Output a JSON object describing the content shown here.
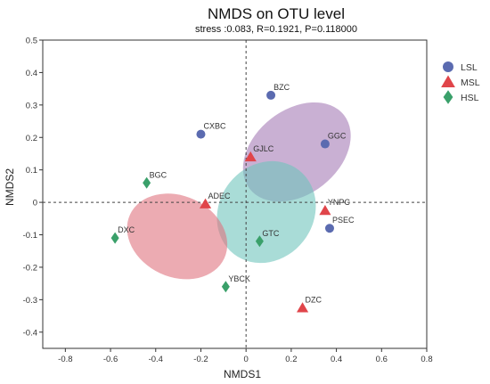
{
  "chart_data": {
    "type": "scatter",
    "title": "NMDS on OTU level",
    "subtitle": "stress :0.083, R=0.1921, P=0.118000",
    "xlabel": "NMDS1",
    "ylabel": "NMDS2",
    "xlim": [
      -0.9,
      0.8
    ],
    "ylim": [
      -0.45,
      0.5
    ],
    "xticks": [
      -0.8,
      -0.6,
      -0.4,
      -0.2,
      0,
      0.2,
      0.4,
      0.6,
      0.8
    ],
    "yticks": [
      -0.4,
      -0.3,
      -0.2,
      -0.1,
      0,
      0.1,
      0.2,
      0.3,
      0.4,
      0.5
    ],
    "xtick_labels": [
      "-0.8",
      "-0.6",
      "-0.4",
      "-0.2",
      "0",
      "0.2",
      "0.4",
      "0.6",
      "0.8"
    ],
    "ytick_labels": [
      "-0.4",
      "-0.3",
      "-0.2",
      "-0.1",
      "0",
      "0.1",
      "0.2",
      "0.3",
      "0.4",
      "0.5"
    ],
    "legend_position": "top-right, outside plot",
    "series": [
      {
        "name": "LSL",
        "marker": "circle",
        "color": "#5b6bb0",
        "ellipse_color": "#a57bb5",
        "ellipse": {
          "cx": 0.225,
          "cy": 0.155,
          "rx": 0.265,
          "ry": 0.13,
          "angle_deg": 38
        },
        "points": [
          {
            "label": "BZC",
            "x": 0.11,
            "y": 0.33
          },
          {
            "label": "CXBC",
            "x": -0.2,
            "y": 0.21
          },
          {
            "label": "GGC",
            "x": 0.35,
            "y": 0.18
          },
          {
            "label": "PSEC",
            "x": 0.37,
            "y": -0.08
          }
        ]
      },
      {
        "name": "MSL",
        "marker": "triangle",
        "color": "#e0454a",
        "ellipse_color": "#6fc4bd",
        "ellipse": {
          "cx": 0.09,
          "cy": -0.03,
          "rx": 0.235,
          "ry": 0.145,
          "angle_deg": 52
        },
        "points": [
          {
            "label": "GJLC",
            "x": 0.02,
            "y": 0.14
          },
          {
            "label": "ADEC",
            "x": -0.18,
            "y": -0.005
          },
          {
            "label": "YNPC",
            "x": 0.35,
            "y": -0.025
          },
          {
            "label": "DZC",
            "x": 0.25,
            "y": -0.325
          }
        ]
      },
      {
        "name": "HSL",
        "marker": "diamond",
        "color": "#3aa06a",
        "ellipse_color": "#e0737f",
        "ellipse": {
          "cx": -0.305,
          "cy": -0.105,
          "rx": 0.23,
          "ry": 0.125,
          "angle_deg": -25
        },
        "points": [
          {
            "label": "BGC",
            "x": -0.44,
            "y": 0.06
          },
          {
            "label": "DXC",
            "x": -0.58,
            "y": -0.11
          },
          {
            "label": "GTC",
            "x": 0.06,
            "y": -0.12
          },
          {
            "label": "YBCK",
            "x": -0.09,
            "y": -0.26
          }
        ]
      }
    ]
  }
}
